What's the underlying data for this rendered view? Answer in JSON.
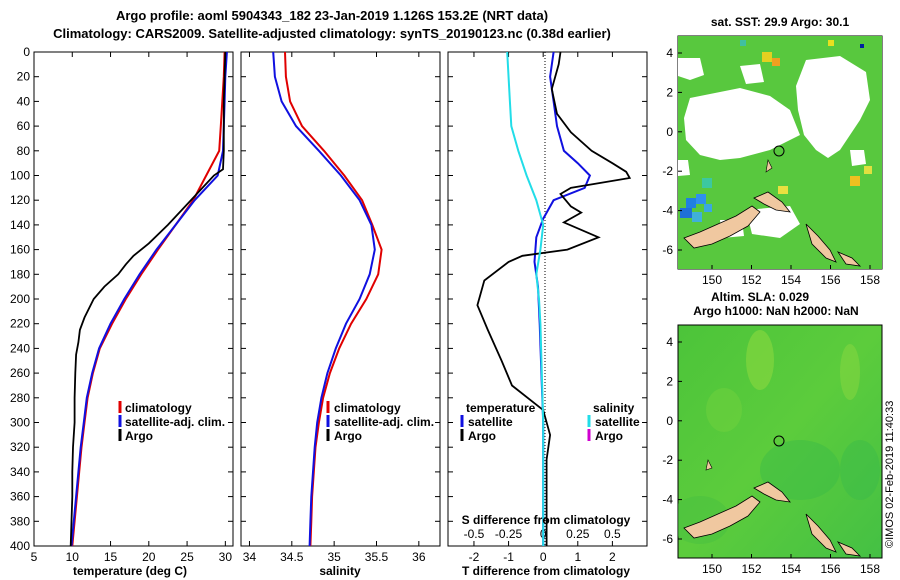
{
  "title": {
    "line1": "Argo profile: aoml 5904343_182 23-Jan-2019 1.126S 153.2E (NRT data)",
    "line2": "Climatology: CARS2009. Satellite-adjusted climatology: synTS_20190123.nc (0.38d earlier)"
  },
  "colors": {
    "climatology": "#e00000",
    "satellite": "#1010e0",
    "argo": "#000000",
    "salinity_sat": "#22dde8",
    "salinity_argo": "#d000d0",
    "land": "#f0c8a0"
  },
  "depth_axis": {
    "ticks": [
      0,
      20,
      40,
      60,
      80,
      100,
      120,
      140,
      160,
      180,
      200,
      220,
      240,
      260,
      280,
      300,
      320,
      340,
      360,
      380,
      400
    ],
    "range": [
      0,
      400
    ]
  },
  "chart_data": [
    {
      "type": "line",
      "id": "temperature",
      "xlabel": "temperature (deg C)",
      "ylabel": "depth",
      "xlim": [
        5,
        31
      ],
      "ylim": [
        400,
        0
      ],
      "xticks": [
        5,
        10,
        15,
        20,
        25,
        30
      ],
      "series": [
        {
          "name": "climatology",
          "color": "#e00000",
          "points": [
            [
              29.9,
              0
            ],
            [
              29.8,
              20
            ],
            [
              29.6,
              40
            ],
            [
              29.4,
              60
            ],
            [
              29.2,
              80
            ],
            [
              27.5,
              100
            ],
            [
              25.8,
              120
            ],
            [
              23.5,
              140
            ],
            [
              21.2,
              160
            ],
            [
              19.0,
              180
            ],
            [
              17.0,
              200
            ],
            [
              15.2,
              220
            ],
            [
              13.6,
              240
            ],
            [
              12.7,
              260
            ],
            [
              12.0,
              280
            ],
            [
              11.6,
              300
            ],
            [
              11.2,
              320
            ],
            [
              10.9,
              340
            ],
            [
              10.6,
              360
            ],
            [
              10.3,
              380
            ],
            [
              10.0,
              400
            ]
          ]
        },
        {
          "name": "satellite-adj. clim.",
          "color": "#1010e0",
          "points": [
            [
              30.2,
              0
            ],
            [
              30.0,
              20
            ],
            [
              29.9,
              40
            ],
            [
              29.8,
              60
            ],
            [
              29.7,
              80
            ],
            [
              29.0,
              100
            ],
            [
              26.0,
              120
            ],
            [
              23.5,
              140
            ],
            [
              21.0,
              160
            ],
            [
              18.8,
              180
            ],
            [
              16.8,
              200
            ],
            [
              15.0,
              220
            ],
            [
              13.5,
              240
            ],
            [
              12.6,
              260
            ],
            [
              11.9,
              280
            ],
            [
              11.5,
              300
            ],
            [
              11.1,
              320
            ],
            [
              10.8,
              340
            ],
            [
              10.5,
              360
            ],
            [
              10.2,
              380
            ],
            [
              9.9,
              400
            ]
          ]
        },
        {
          "name": "Argo",
          "color": "#000000",
          "points": [
            [
              30.0,
              0
            ],
            [
              29.9,
              20
            ],
            [
              29.8,
              40
            ],
            [
              29.8,
              60
            ],
            [
              29.8,
              80
            ],
            [
              29.7,
              95
            ],
            [
              28.5,
              100
            ],
            [
              27.0,
              110
            ],
            [
              25.5,
              120
            ],
            [
              22.5,
              140
            ],
            [
              20.0,
              155
            ],
            [
              18.0,
              165
            ],
            [
              17.0,
              172
            ],
            [
              16.0,
              180
            ],
            [
              14.2,
              190
            ],
            [
              12.8,
              200
            ],
            [
              11.6,
              215
            ],
            [
              11.0,
              225
            ],
            [
              10.8,
              235
            ],
            [
              10.5,
              245
            ],
            [
              10.4,
              260
            ],
            [
              10.3,
              280
            ],
            [
              10.3,
              300
            ],
            [
              10.1,
              320
            ],
            [
              10.0,
              340
            ],
            [
              10.0,
              360
            ],
            [
              9.9,
              380
            ],
            [
              9.8,
              400
            ]
          ]
        }
      ],
      "legend": [
        "climatology",
        "satellite-adj. clim.",
        "Argo"
      ]
    },
    {
      "type": "line",
      "id": "salinity",
      "xlabel": "salinity",
      "ylabel": "depth",
      "xlim": [
        33.9,
        36.25
      ],
      "ylim": [
        400,
        0
      ],
      "xticks": [
        34,
        34.5,
        35,
        35.5,
        36
      ],
      "xtick_labels": [
        "34",
        "34.5",
        "35",
        "35.5",
        "36"
      ],
      "series": [
        {
          "name": "climatology",
          "color": "#e00000",
          "points": [
            [
              34.42,
              0
            ],
            [
              34.43,
              20
            ],
            [
              34.48,
              40
            ],
            [
              34.62,
              60
            ],
            [
              34.88,
              80
            ],
            [
              35.12,
              100
            ],
            [
              35.33,
              120
            ],
            [
              35.45,
              140
            ],
            [
              35.56,
              160
            ],
            [
              35.52,
              180
            ],
            [
              35.38,
              200
            ],
            [
              35.2,
              220
            ],
            [
              35.06,
              240
            ],
            [
              34.95,
              260
            ],
            [
              34.87,
              280
            ],
            [
              34.82,
              300
            ],
            [
              34.78,
              320
            ],
            [
              34.76,
              340
            ],
            [
              34.74,
              360
            ],
            [
              34.73,
              380
            ],
            [
              34.72,
              400
            ]
          ]
        },
        {
          "name": "satellite-adj. clim.",
          "color": "#1010e0",
          "points": [
            [
              34.28,
              0
            ],
            [
              34.3,
              20
            ],
            [
              34.38,
              40
            ],
            [
              34.55,
              60
            ],
            [
              34.82,
              80
            ],
            [
              35.08,
              100
            ],
            [
              35.3,
              120
            ],
            [
              35.44,
              140
            ],
            [
              35.48,
              160
            ],
            [
              35.42,
              180
            ],
            [
              35.3,
              200
            ],
            [
              35.14,
              220
            ],
            [
              35.02,
              240
            ],
            [
              34.92,
              260
            ],
            [
              34.85,
              280
            ],
            [
              34.8,
              300
            ],
            [
              34.77,
              320
            ],
            [
              34.75,
              340
            ],
            [
              34.73,
              360
            ],
            [
              34.72,
              380
            ],
            [
              34.71,
              400
            ]
          ]
        }
      ],
      "legend": [
        "climatology",
        "satellite-adj. clim.",
        "Argo"
      ]
    },
    {
      "type": "line",
      "id": "difference",
      "xlabel": "T difference from climatology",
      "top_label": "S difference from climatology",
      "xlim": [
        -2.75,
        3.0
      ],
      "ylim": [
        400,
        0
      ],
      "xticks": [
        -2,
        -1,
        0,
        1,
        2
      ],
      "top_xlim": [
        -0.6875,
        0.75
      ],
      "top_xticks": [
        -0.5,
        -0.25,
        0,
        0.25,
        0.5
      ],
      "top_xtick_labels": [
        "-0.5",
        "-0.25",
        "0",
        "0.25",
        "0.5"
      ],
      "series": [
        {
          "name": "satellite",
          "group": "temperature",
          "color": "#1010e0",
          "axis": "T",
          "points": [
            [
              0.3,
              0
            ],
            [
              0.2,
              20
            ],
            [
              0.3,
              40
            ],
            [
              0.4,
              60
            ],
            [
              0.6,
              80
            ],
            [
              1.0,
              90
            ],
            [
              1.35,
              100
            ],
            [
              1.2,
              110
            ],
            [
              0.3,
              120
            ],
            [
              0,
              135
            ],
            [
              -0.2,
              150
            ],
            [
              -0.25,
              170
            ],
            [
              -0.15,
              190
            ],
            [
              -0.1,
              220
            ],
            [
              -0.05,
              260
            ],
            [
              0,
              300
            ],
            [
              0,
              340
            ],
            [
              0,
              400
            ]
          ]
        },
        {
          "name": "Argo",
          "group": "temperature",
          "color": "#000000",
          "axis": "T",
          "points": [
            [
              0.5,
              0
            ],
            [
              0.45,
              10
            ],
            [
              0.25,
              30
            ],
            [
              0.4,
              50
            ],
            [
              0.8,
              65
            ],
            [
              1.4,
              80
            ],
            [
              2.0,
              90
            ],
            [
              2.4,
              97
            ],
            [
              2.5,
              102
            ],
            [
              0.8,
              110
            ],
            [
              0.5,
              115
            ],
            [
              0.8,
              125
            ],
            [
              1.1,
              130
            ],
            [
              0.6,
              138
            ],
            [
              1.6,
              150
            ],
            [
              0.7,
              160
            ],
            [
              -0.6,
              165
            ],
            [
              -1.0,
              170
            ],
            [
              -1.7,
              185
            ],
            [
              -1.9,
              205
            ],
            [
              -1.6,
              225
            ],
            [
              -1.2,
              250
            ],
            [
              -0.9,
              270
            ],
            [
              0,
              290
            ],
            [
              0.2,
              310
            ],
            [
              0.1,
              330
            ],
            [
              0.1,
              360
            ],
            [
              0.1,
              400
            ]
          ]
        },
        {
          "name": "satellite",
          "group": "salinity",
          "color": "#22dde8",
          "axis": "S",
          "points": [
            [
              -0.26,
              0
            ],
            [
              -0.24,
              40
            ],
            [
              -0.23,
              60
            ],
            [
              -0.18,
              80
            ],
            [
              -0.12,
              100
            ],
            [
              -0.05,
              120
            ],
            [
              0.0,
              140
            ],
            [
              -0.02,
              160
            ],
            [
              -0.05,
              180
            ],
            [
              -0.03,
              200
            ],
            [
              -0.02,
              220
            ],
            [
              -0.01,
              260
            ],
            [
              0.0,
              300
            ],
            [
              0.0,
              400
            ]
          ]
        },
        {
          "name": "Argo",
          "group": "salinity",
          "color": "#d000d0",
          "axis": "S",
          "points": []
        }
      ],
      "legend_temperature_title": "temperature",
      "legend_salinity_title": "salinity",
      "legend_temperature": [
        "satellite",
        "Argo"
      ],
      "legend_salinity": [
        "satellite",
        "Argo"
      ]
    }
  ],
  "maps": [
    {
      "id": "sst-map",
      "title": "sat. SST: 29.9 Argo: 30.1",
      "xticks": [
        "150",
        "152",
        "154",
        "156",
        "158"
      ],
      "yticks": [
        "4",
        "2",
        "0",
        "-2",
        "-4",
        "-6"
      ]
    },
    {
      "id": "sla-map",
      "title_line1": "Altim. SLA: 0.029",
      "title_line2": "Argo h1000: NaN h2000: NaN",
      "xticks": [
        "150",
        "152",
        "154",
        "156",
        "158"
      ],
      "yticks": [
        "4",
        "2",
        "0",
        "-2",
        "-4",
        "-6"
      ]
    }
  ],
  "credit": "©IMOS 02-Feb-2019 11:40:33"
}
